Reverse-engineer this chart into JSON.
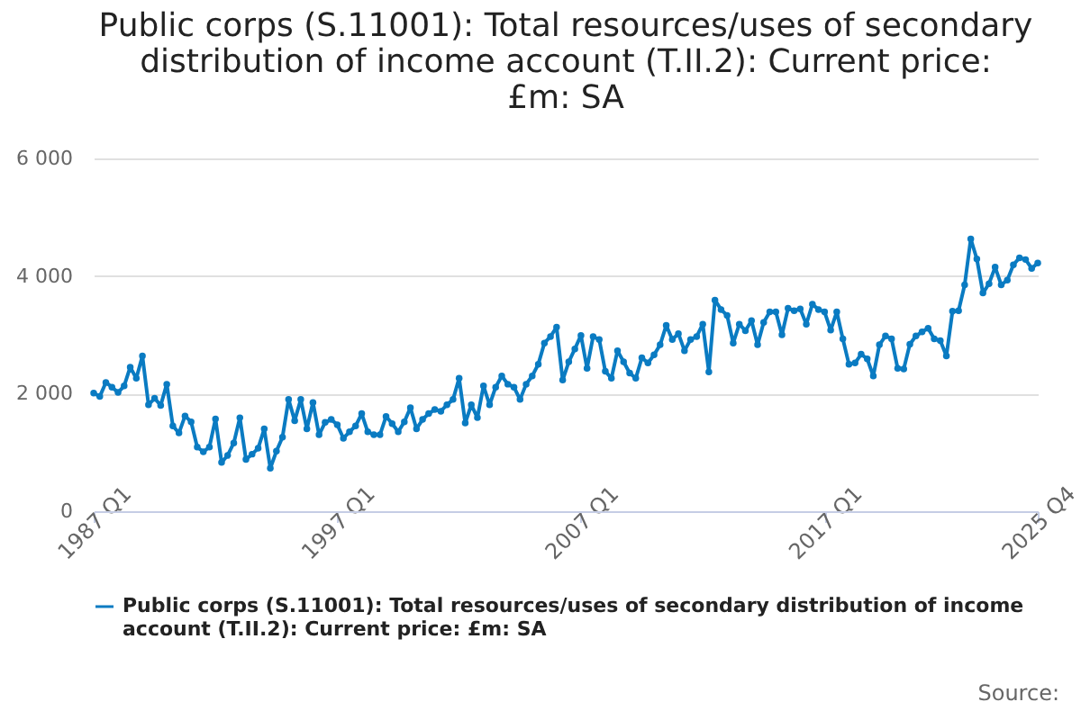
{
  "chart_data": {
    "type": "line",
    "title": "Public corps (S.11001): Total resources/uses of secondary distribution of income account (T.II.2): Current price: £m: SA",
    "categories": [
      "1987 Q1",
      null,
      null,
      null,
      null,
      null,
      null,
      null,
      null,
      null,
      null,
      null,
      null,
      null,
      null,
      null,
      null,
      null,
      null,
      null,
      null,
      null,
      null,
      null,
      null,
      null,
      null,
      null,
      null,
      null,
      null,
      null,
      null,
      null,
      null,
      null,
      null,
      null,
      null,
      null,
      "1997 Q1",
      null,
      null,
      null,
      null,
      null,
      null,
      null,
      null,
      null,
      null,
      null,
      null,
      null,
      null,
      null,
      null,
      null,
      null,
      null,
      null,
      null,
      null,
      null,
      null,
      null,
      null,
      null,
      null,
      null,
      null,
      null,
      null,
      null,
      null,
      null,
      null,
      null,
      null,
      null,
      "2007 Q1",
      null,
      null,
      null,
      null,
      null,
      null,
      null,
      null,
      null,
      null,
      null,
      null,
      null,
      null,
      null,
      null,
      null,
      null,
      null,
      null,
      null,
      null,
      null,
      null,
      null,
      null,
      null,
      null,
      null,
      null,
      null,
      null,
      null,
      null,
      null,
      null,
      null,
      null,
      null,
      "2017 Q1",
      null,
      null,
      null,
      null,
      null,
      null,
      null,
      null,
      null,
      null,
      null,
      null,
      null,
      null,
      null,
      null,
      null,
      null,
      null,
      null,
      null,
      null,
      null,
      null,
      null,
      null,
      null,
      null,
      null,
      null,
      null,
      null,
      null,
      null,
      "2025 Q4"
    ],
    "series": [
      {
        "name": "Public corps (S.11001): Total resources/uses of secondary distribution of income account (T.II.2): Current price: £m: SA",
        "color": "#0a7bc2",
        "values": [
          2010,
          1950,
          2190,
          2110,
          2020,
          2130,
          2450,
          2260,
          2640,
          1810,
          1920,
          1800,
          2160,
          1450,
          1330,
          1620,
          1520,
          1090,
          1010,
          1090,
          1570,
          830,
          950,
          1160,
          1590,
          880,
          970,
          1070,
          1400,
          730,
          1020,
          1260,
          1900,
          1540,
          1900,
          1400,
          1850,
          1300,
          1510,
          1560,
          1470,
          1240,
          1350,
          1450,
          1660,
          1350,
          1300,
          1300,
          1610,
          1490,
          1350,
          1520,
          1760,
          1400,
          1560,
          1660,
          1730,
          1700,
          1810,
          1900,
          2260,
          1500,
          1810,
          1590,
          2130,
          1810,
          2110,
          2300,
          2160,
          2110,
          1900,
          2160,
          2300,
          2500,
          2860,
          2970,
          3130,
          2230,
          2540,
          2760,
          2990,
          2430,
          2970,
          2920,
          2380,
          2260,
          2730,
          2540,
          2350,
          2260,
          2610,
          2520,
          2660,
          2830,
          3160,
          2920,
          3020,
          2730,
          2920,
          2970,
          3180,
          2370,
          3590,
          3430,
          3330,
          2860,
          3180,
          3070,
          3240,
          2830,
          3210,
          3390,
          3390,
          3000,
          3450,
          3410,
          3440,
          3180,
          3520,
          3430,
          3390,
          3080,
          3390,
          2930,
          2500,
          2520,
          2670,
          2590,
          2300,
          2830,
          2980,
          2930,
          2430,
          2420,
          2840,
          2980,
          3050,
          3110,
          2930,
          2900,
          2640,
          3400,
          3410,
          3850,
          4630,
          4290,
          3710,
          3870,
          4150,
          3850,
          3930,
          4190,
          4310,
          4280,
          4130,
          4220
        ]
      }
    ],
    "ylim": [
      0,
      6000
    ],
    "yticks": [
      {
        "value": 0,
        "label": "0"
      },
      {
        "value": 2000,
        "label": "2 000"
      },
      {
        "value": 4000,
        "label": "4 000"
      },
      {
        "value": 6000,
        "label": "6 000"
      }
    ],
    "grid": "y",
    "marker": "circle",
    "line_style": "solid",
    "legend": "bottom",
    "annotations": [
      "Source:"
    ]
  }
}
